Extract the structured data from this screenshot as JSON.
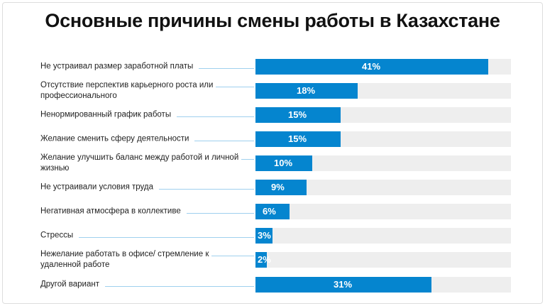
{
  "chart_data": {
    "type": "bar",
    "orientation": "horizontal",
    "title": "Основные причины смены работы в Казахстане",
    "categories": [
      "Не устраивал размер заработной платы",
      "Отсутствие перспектив карьерного роста или профессионального",
      "Ненормированный график работы",
      "Желание сменить сферу деятельности",
      "Желание улучшить баланс между работой и личной жизнью",
      "Не устраивали условия труда",
      "Негативная атмосфера в коллективе",
      "Стрессы",
      "Нежелание работать в офисе/ стремление к удаленной работе",
      "Другой вариант"
    ],
    "values": [
      41,
      18,
      15,
      15,
      10,
      9,
      6,
      3,
      2,
      31
    ],
    "labels": [
      "41%",
      "18%",
      "15%",
      "15%",
      "10%",
      "9%",
      "6%",
      "3%",
      "2%",
      "31%"
    ],
    "xlim": [
      0,
      45
    ],
    "bar_color": "#0585cf",
    "track_color": "#eeeeee"
  }
}
